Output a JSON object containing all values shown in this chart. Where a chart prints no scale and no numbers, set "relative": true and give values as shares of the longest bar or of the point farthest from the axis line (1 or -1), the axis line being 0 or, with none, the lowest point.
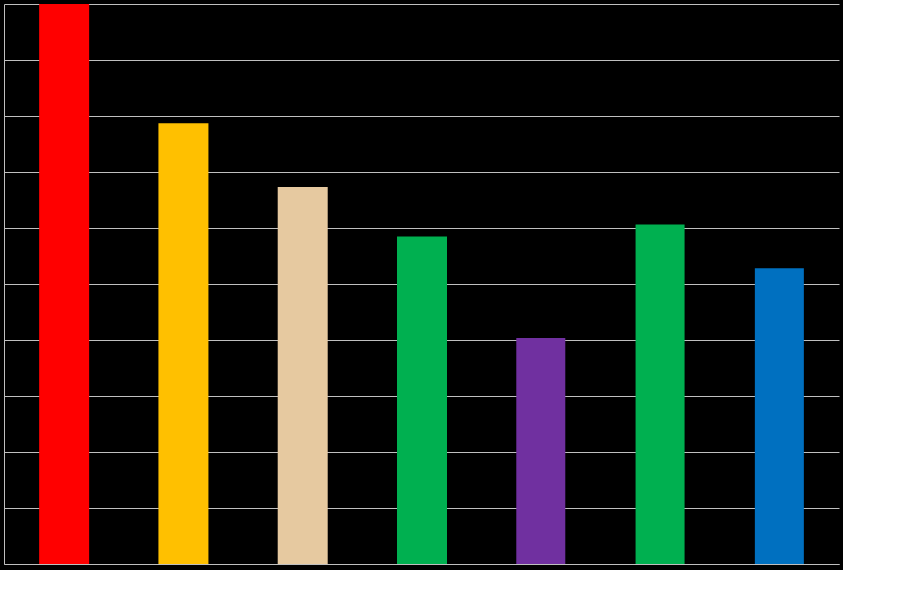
{
  "chart_data": {
    "type": "bar",
    "relative": true,
    "grid": "y",
    "categories": [
      null,
      null,
      null,
      null,
      null,
      null,
      null
    ],
    "values": [
      1,
      0.787,
      0.674,
      0.585,
      0.404,
      0.607,
      0.528
    ],
    "colors": [
      "#ff0000",
      "#ffc000",
      "#e6c9a0",
      "#00b050",
      "#7030a0",
      "#00b050",
      "#0070c0"
    ]
  }
}
